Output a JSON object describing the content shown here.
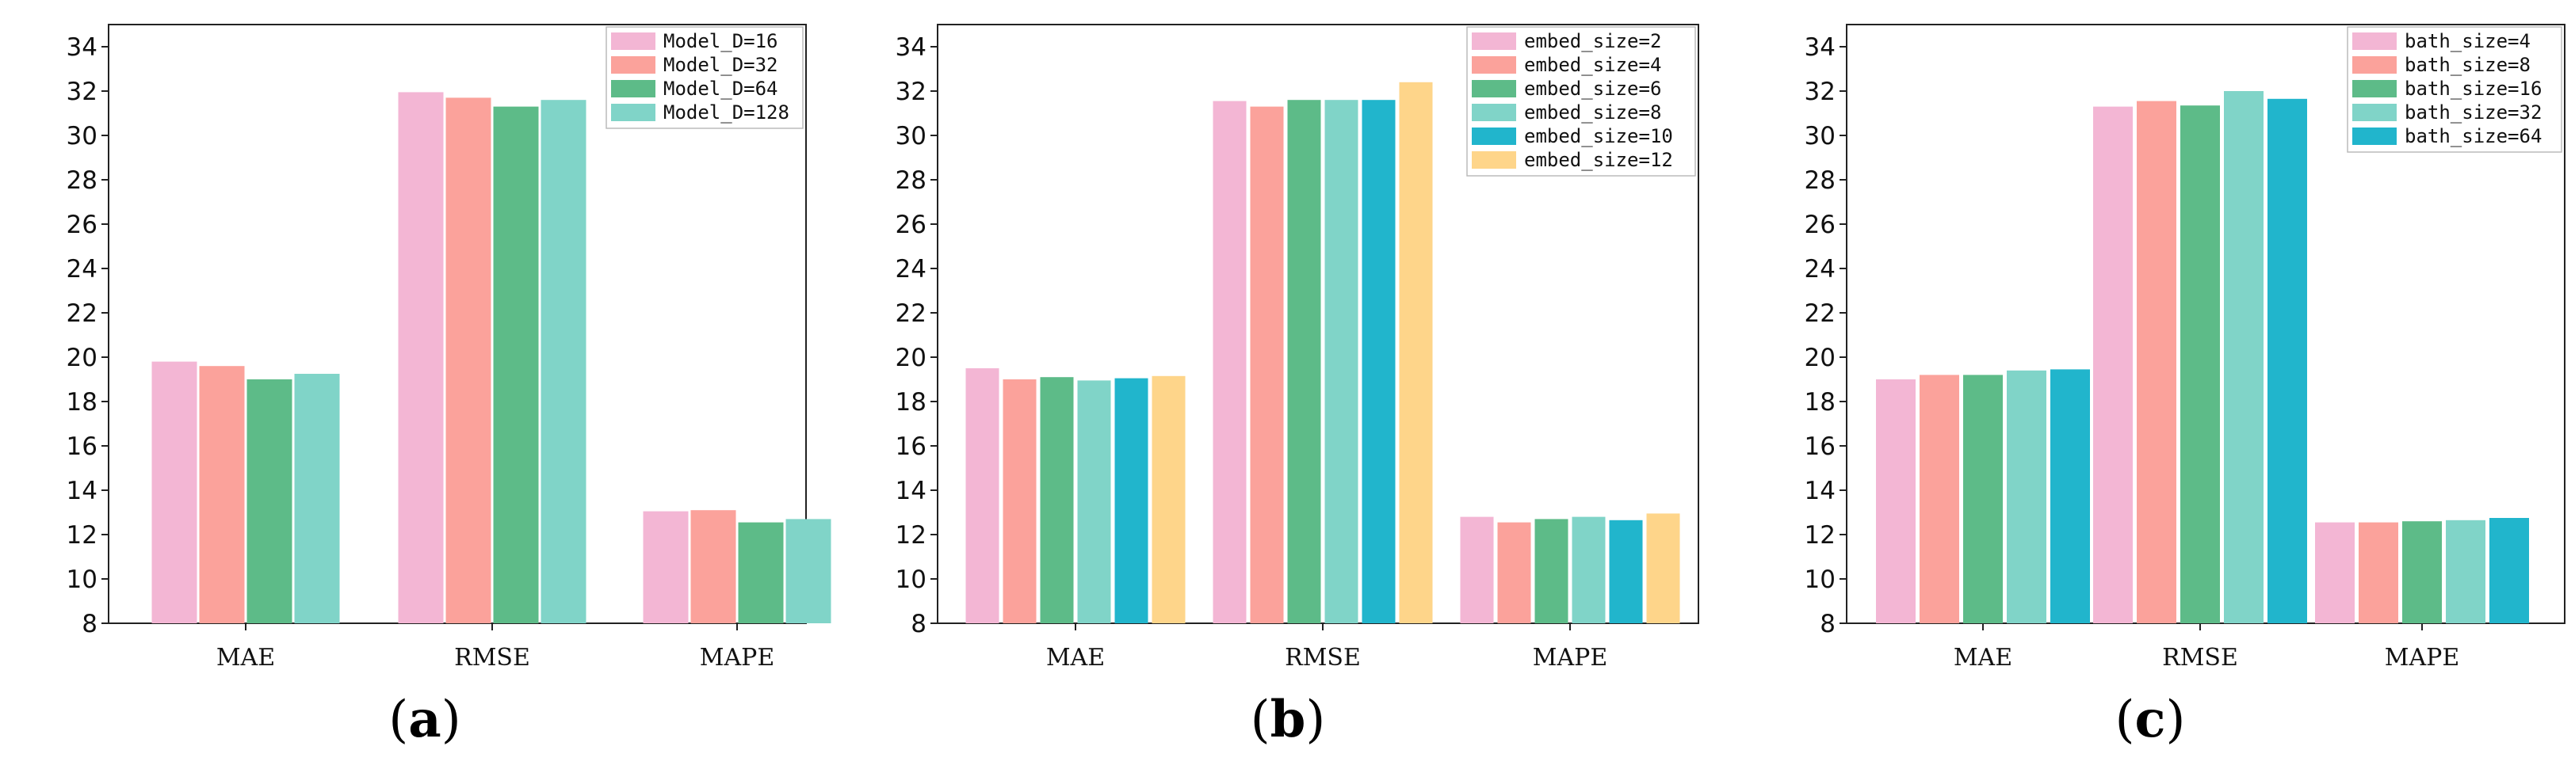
{
  "colors": [
    "#f3b6d4",
    "#fba29b",
    "#5dbb88",
    "#80d4c8",
    "#21b5cc",
    "#fed58a"
  ],
  "chart_data": [
    {
      "type": "bar",
      "panel_label": "a",
      "categories": [
        "MAE",
        "RMSE",
        "MAPE"
      ],
      "ylim": [
        8,
        35
      ],
      "yticks": [
        8,
        10,
        12,
        14,
        16,
        18,
        20,
        22,
        24,
        26,
        28,
        30,
        32,
        34
      ],
      "legend_position": "top-right",
      "series": [
        {
          "name": "Model_D=16",
          "values": [
            19.8,
            31.95,
            13.05
          ]
        },
        {
          "name": "Model_D=32",
          "values": [
            19.6,
            31.7,
            13.1
          ]
        },
        {
          "name": "Model_D=64",
          "values": [
            19.0,
            31.3,
            12.55
          ]
        },
        {
          "name": "Model_D=128",
          "values": [
            19.25,
            31.6,
            12.7
          ]
        }
      ]
    },
    {
      "type": "bar",
      "panel_label": "b",
      "categories": [
        "MAE",
        "RMSE",
        "MAPE"
      ],
      "ylim": [
        8,
        35
      ],
      "yticks": [
        8,
        10,
        12,
        14,
        16,
        18,
        20,
        22,
        24,
        26,
        28,
        30,
        32,
        34
      ],
      "legend_position": "top-right",
      "series": [
        {
          "name": "embed_size=2",
          "values": [
            19.5,
            31.55,
            12.8
          ]
        },
        {
          "name": "embed_size=4",
          "values": [
            19.0,
            31.3,
            12.55
          ]
        },
        {
          "name": "embed_size=6",
          "values": [
            19.1,
            31.6,
            12.7
          ]
        },
        {
          "name": "embed_size=8",
          "values": [
            18.95,
            31.6,
            12.8
          ]
        },
        {
          "name": "embed_size=10",
          "values": [
            19.05,
            31.6,
            12.65
          ]
        },
        {
          "name": "embed_size=12",
          "values": [
            19.15,
            32.4,
            12.95
          ]
        }
      ]
    },
    {
      "type": "bar",
      "panel_label": "c",
      "categories": [
        "MAE",
        "RMSE",
        "MAPE"
      ],
      "ylim": [
        8,
        35
      ],
      "yticks": [
        8,
        10,
        12,
        14,
        16,
        18,
        20,
        22,
        24,
        26,
        28,
        30,
        32,
        34
      ],
      "legend_position": "top-right",
      "series": [
        {
          "name": "bath_size=4",
          "values": [
            19.0,
            31.3,
            12.55
          ]
        },
        {
          "name": "bath_size=8",
          "values": [
            19.2,
            31.55,
            12.55
          ]
        },
        {
          "name": "bath_size=16",
          "values": [
            19.2,
            31.35,
            12.6
          ]
        },
        {
          "name": "bath_size=32",
          "values": [
            19.4,
            32.0,
            12.65
          ]
        },
        {
          "name": "bath_size=64",
          "values": [
            19.45,
            31.65,
            12.75
          ]
        }
      ]
    }
  ]
}
